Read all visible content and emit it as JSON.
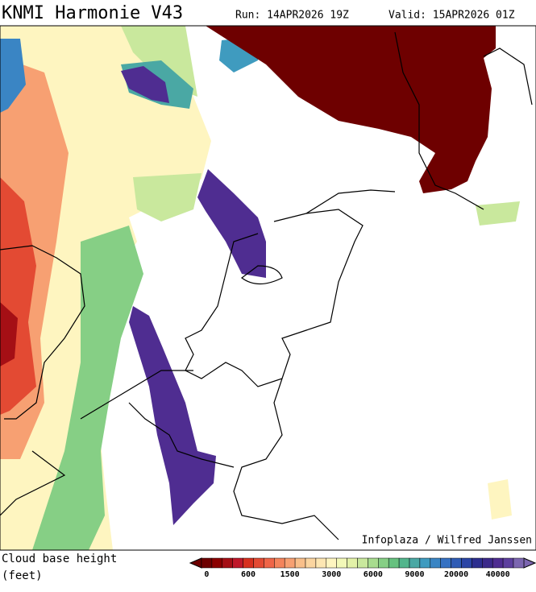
{
  "header": {
    "title": "KNMI Harmonie V43",
    "run": "Run: 14APR2026 19Z",
    "valid": "Valid: 15APR2026 01Z"
  },
  "map": {
    "credit": "Infoplaza / Wilfred Janssen"
  },
  "legend": {
    "title": "Cloud base height",
    "unit": "(feet)",
    "labels": [
      "0",
      "600",
      "1500",
      "3000",
      "6000",
      "9000",
      "20000",
      "40000"
    ],
    "colors": [
      "#6e0000",
      "#8b0000",
      "#a50f15",
      "#c0182a",
      "#d7301f",
      "#e34a33",
      "#ef6548",
      "#f4845c",
      "#f7a072",
      "#f9bf8a",
      "#fbd5a0",
      "#fde6b2",
      "#fef5c0",
      "#f3f9b8",
      "#e3f2a8",
      "#c9e89d",
      "#a8dc8f",
      "#86cf85",
      "#66c17f",
      "#52b58c",
      "#4aa8a4",
      "#3f9bbf",
      "#3a85c4",
      "#3571c2",
      "#2f5cb5",
      "#2b45a5",
      "#2d2f8f",
      "#3c2a8a",
      "#4f2d91",
      "#5d3f9e",
      "#7c66b0"
    ]
  }
}
